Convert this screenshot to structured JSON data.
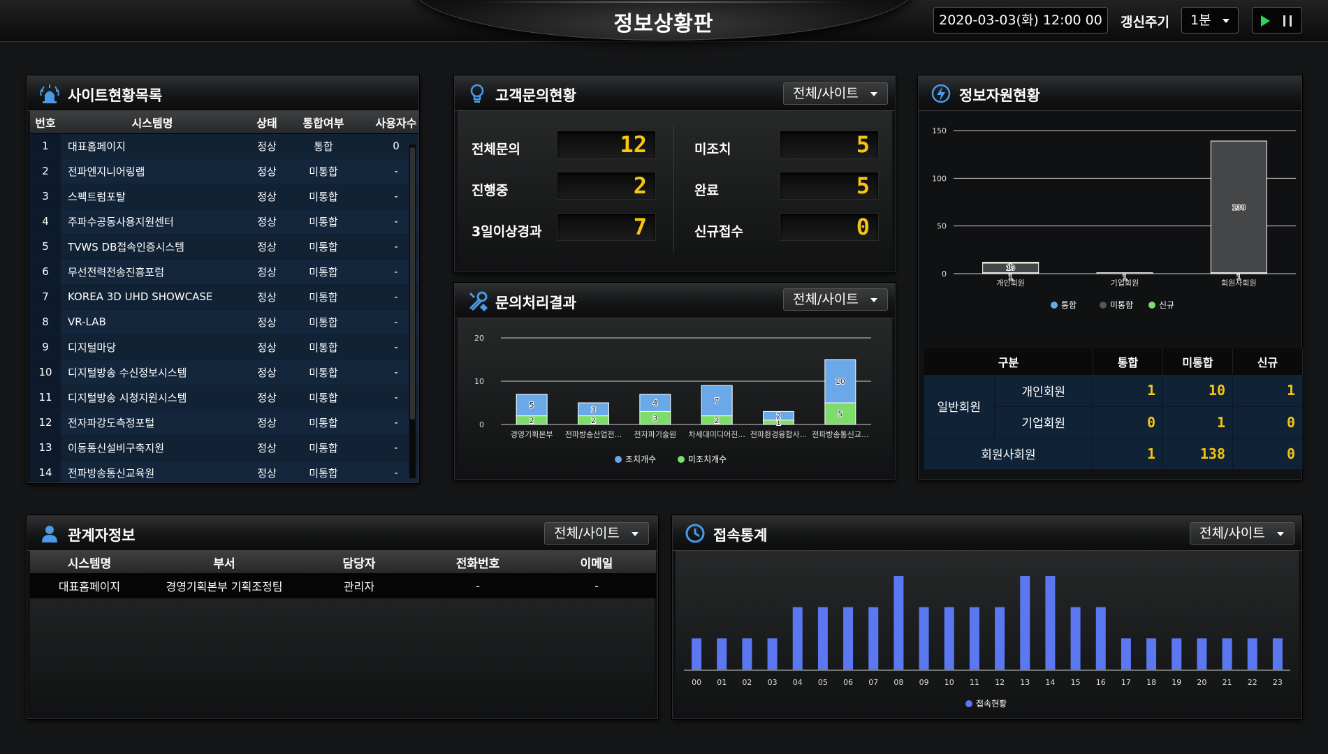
{
  "header": {
    "title": "정보상황판",
    "datetime": "2020-03-03(화) 12:00 00",
    "refresh_label": "갱신주기",
    "refresh_value": "1분"
  },
  "site_list": {
    "title": "사이트현황목록",
    "columns": [
      "번호",
      "시스템명",
      "상태",
      "통합여부",
      "사용자수"
    ],
    "rows": [
      {
        "no": "1",
        "name": "대표홈페이지",
        "status": "정상",
        "integration": "통합",
        "users": "0"
      },
      {
        "no": "2",
        "name": "전파엔지니어링랩",
        "status": "정상",
        "integration": "미통합",
        "users": "-"
      },
      {
        "no": "3",
        "name": "스펙트럼포탈",
        "status": "정상",
        "integration": "미통합",
        "users": "-"
      },
      {
        "no": "4",
        "name": "주파수공동사용지원센터",
        "status": "정상",
        "integration": "미통합",
        "users": "-"
      },
      {
        "no": "5",
        "name": "TVWS DB접속인증시스템",
        "status": "정상",
        "integration": "미통합",
        "users": "-"
      },
      {
        "no": "6",
        "name": "무선전력전송진흥포럼",
        "status": "정상",
        "integration": "미통합",
        "users": "-"
      },
      {
        "no": "7",
        "name": "KOREA 3D UHD SHOWCASE",
        "status": "정상",
        "integration": "미통합",
        "users": "-"
      },
      {
        "no": "8",
        "name": "VR-LAB",
        "status": "정상",
        "integration": "미통합",
        "users": "-"
      },
      {
        "no": "9",
        "name": "디지털마당",
        "status": "정상",
        "integration": "미통합",
        "users": "-"
      },
      {
        "no": "10",
        "name": "디지털방송 수신정보시스템",
        "status": "정상",
        "integration": "미통합",
        "users": "-"
      },
      {
        "no": "11",
        "name": "디지털방송 시청지원시스템",
        "status": "정상",
        "integration": "미통합",
        "users": "-"
      },
      {
        "no": "12",
        "name": "전자파강도측정포털",
        "status": "정상",
        "integration": "미통합",
        "users": "-"
      },
      {
        "no": "13",
        "name": "이동통신설비구축지원",
        "status": "정상",
        "integration": "미통합",
        "users": "-"
      },
      {
        "no": "14",
        "name": "전파방송통신교육원",
        "status": "정상",
        "integration": "미통합",
        "users": "-"
      }
    ]
  },
  "inquiry_status": {
    "title": "고객문의현황",
    "filter": "전체/사이트",
    "items": [
      {
        "label": "전체문의",
        "value": "12"
      },
      {
        "label": "미조치",
        "value": "5"
      },
      {
        "label": "진행중",
        "value": "2"
      },
      {
        "label": "완료",
        "value": "5"
      },
      {
        "label": "3일이상경과",
        "value": "7"
      },
      {
        "label": "신규접수",
        "value": "0"
      }
    ]
  },
  "inquiry_result": {
    "title": "문의처리결과",
    "filter": "전체/사이트"
  },
  "info_resource": {
    "title": "정보자원현황",
    "table_headers": [
      "구분",
      "통합",
      "미통합",
      "신규"
    ],
    "group_label": "일반회원",
    "rows": [
      {
        "label": "개인회원",
        "integrated": "1",
        "non_integrated": "10",
        "new": "1"
      },
      {
        "label": "기업회원",
        "integrated": "0",
        "non_integrated": "1",
        "new": "0"
      },
      {
        "label": "회원사회원",
        "integrated": "1",
        "non_integrated": "138",
        "new": "0"
      }
    ]
  },
  "contacts": {
    "title": "관계자정보",
    "filter": "전체/사이트",
    "columns": [
      "시스템명",
      "부서",
      "담당자",
      "전화번호",
      "이메일"
    ],
    "rows": [
      {
        "system": "대표홈페이지",
        "dept": "경영기획본부 기획조정팀",
        "manager": "관리자",
        "phone": "-",
        "email": "-"
      }
    ]
  },
  "access_stats": {
    "title": "접속통계",
    "filter": "전체/사이트"
  },
  "colors": {
    "blue_status": "#3a8ce6",
    "red_status": "#e42b2b",
    "lcd_yellow": "#f6c512",
    "bar_blue": "#6aa8e8",
    "bar_green": "#7ddc6a",
    "bar_access": "#5b78f0"
  },
  "chart_data": [
    {
      "id": "inquiry_result",
      "type": "bar",
      "stacked": true,
      "categories": [
        "경영기획본부",
        "전파방송산업전...",
        "전자파기술원",
        "차세대미디어진...",
        "전파환경융합사...",
        "전파방송통신교..."
      ],
      "series": [
        {
          "name": "미조치개수",
          "color": "#7ddc6a",
          "values": [
            2,
            2,
            3,
            2,
            1,
            5
          ]
        },
        {
          "name": "조치개수",
          "color": "#6aa8e8",
          "values": [
            5,
            3,
            4,
            7,
            2,
            10
          ]
        }
      ],
      "ylim": [
        0,
        20
      ],
      "yticks": [
        0,
        10,
        20
      ],
      "grid": true,
      "legend": "bottom",
      "legend_order": [
        "조치개수",
        "미조치개수"
      ]
    },
    {
      "id": "info_resource",
      "type": "bar",
      "stacked": true,
      "categories": [
        "개인회원",
        "기업회원",
        "회원사회원"
      ],
      "series": [
        {
          "name": "통합",
          "color": "#6aa8e8",
          "values": [
            1,
            0,
            1
          ]
        },
        {
          "name": "미통합",
          "color": "#444648",
          "values": [
            10,
            1,
            138
          ]
        },
        {
          "name": "신규",
          "color": "#7ddc6a",
          "values": [
            1,
            0,
            0
          ]
        }
      ],
      "ylim": [
        0,
        150
      ],
      "yticks": [
        0,
        50,
        100,
        150
      ],
      "grid": true,
      "legend": "bottom"
    },
    {
      "id": "access_stats",
      "type": "bar",
      "categories": [
        "00",
        "01",
        "02",
        "03",
        "04",
        "05",
        "06",
        "07",
        "08",
        "09",
        "10",
        "11",
        "12",
        "13",
        "14",
        "15",
        "16",
        "17",
        "18",
        "19",
        "20",
        "21",
        "22",
        "23"
      ],
      "series": [
        {
          "name": "접속현황",
          "color": "#5b78f0",
          "values": [
            1,
            1,
            1,
            1,
            2,
            2,
            2,
            2,
            3,
            2,
            2,
            2,
            2,
            3,
            3,
            2,
            2,
            1,
            1,
            1,
            1,
            1,
            1,
            1
          ]
        }
      ],
      "ylim": [
        0,
        3
      ],
      "legend": "bottom"
    }
  ]
}
